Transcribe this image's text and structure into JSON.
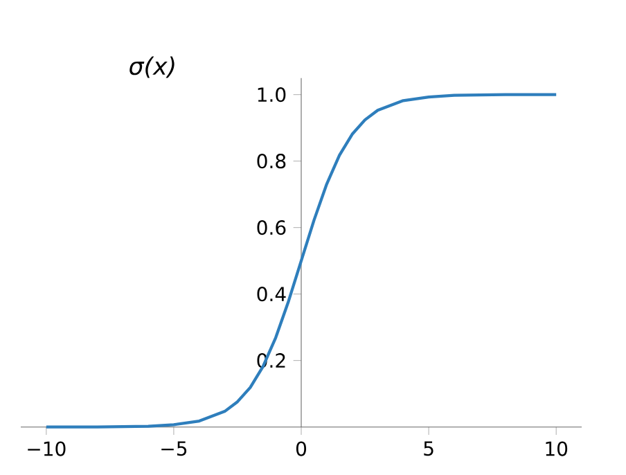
{
  "chart_data": {
    "type": "line",
    "title": "σ(x)",
    "x": [
      -10,
      -8,
      -6,
      -5,
      -4,
      -3,
      -2.5,
      -2,
      -1.5,
      -1,
      -0.5,
      0,
      0.5,
      1,
      1.5,
      2,
      2.5,
      3,
      4,
      5,
      6,
      8,
      10
    ],
    "series": [
      {
        "color": "#2e7ebc",
        "values": [
          0.0,
          0.0,
          0.002,
          0.007,
          0.018,
          0.047,
          0.076,
          0.119,
          0.182,
          0.269,
          0.378,
          0.5,
          0.622,
          0.731,
          0.818,
          0.881,
          0.924,
          0.953,
          0.982,
          0.993,
          0.998,
          1.0,
          1.0
        ]
      }
    ],
    "xlim": [
      -11,
      11
    ],
    "ylim": [
      0,
      1.05
    ],
    "xticks": [
      {
        "value": -10,
        "label": "−10"
      },
      {
        "value": -5,
        "label": "−5"
      },
      0,
      5,
      10
    ],
    "yticks": [
      0.2,
      0.4,
      0.6,
      0.8,
      {
        "value": 1,
        "label": "1.0"
      }
    ],
    "grid": false,
    "marker": "none",
    "line_style": "solid"
  }
}
